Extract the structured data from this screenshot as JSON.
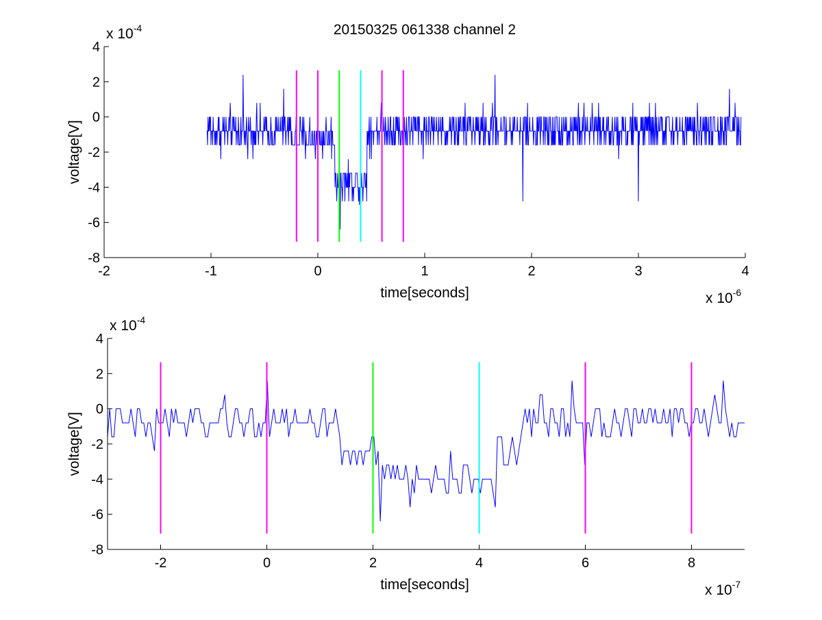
{
  "figure": {
    "title": "20150325 061338 channel 2"
  },
  "colors": {
    "trace": "#0000ff",
    "marker_magenta": "#ff00ff",
    "marker_green": "#00ff00",
    "marker_cyan": "#00ffff",
    "axes": "#000000",
    "background": "#ffffff"
  },
  "chart_data": [
    {
      "type": "line",
      "title": "20150325 061338 channel 2",
      "xlabel": "time[seconds]",
      "ylabel": "voltage[V]",
      "x_multiplier_label": "x 10",
      "x_multiplier_exponent": "-6",
      "y_multiplier_label": "x 10",
      "y_multiplier_exponent": "-4",
      "xlim": [
        -2e-06,
        4e-06
      ],
      "ylim": [
        -0.0008,
        0.0004
      ],
      "grid": false,
      "xticks": [
        {
          "value": -2e-06,
          "label": "-2"
        },
        {
          "value": -1e-06,
          "label": "-1"
        },
        {
          "value": 0,
          "label": "0"
        },
        {
          "value": 1e-06,
          "label": "1"
        },
        {
          "value": 2e-06,
          "label": "2"
        },
        {
          "value": 3e-06,
          "label": "3"
        },
        {
          "value": 4e-06,
          "label": "4"
        }
      ],
      "yticks": [
        {
          "value": -0.0008,
          "label": "-8"
        },
        {
          "value": -0.0006,
          "label": "-6"
        },
        {
          "value": -0.0004,
          "label": "-4"
        },
        {
          "value": -0.0002,
          "label": "-2"
        },
        {
          "value": 0,
          "label": "0"
        },
        {
          "value": 0.0002,
          "label": "2"
        },
        {
          "value": 0.0004,
          "label": "4"
        }
      ],
      "series": [
        {
          "color": "#0000ff",
          "x_start": -1.04e-06,
          "x_end": 3.96e-06,
          "segments": [
            {
              "x": [
                -1.04e-06,
                -2.4e-07
              ],
              "mean": -8e-05,
              "amp": 0.0001
            },
            {
              "x": [
                -2.4e-07,
                1.6e-07
              ],
              "mean": -0.00012,
              "amp": 0.0001
            },
            {
              "x": [
                1.6e-07,
                4.6e-07
              ],
              "mean": -0.00036,
              "amp": 0.0001
            },
            {
              "x": [
                4.6e-07,
                3.96e-06
              ],
              "mean": -7e-05,
              "amp": 0.0001
            }
          ],
          "extremes": [
            {
              "x": 2.1e-07,
              "y": -0.00064
            },
            {
              "x": 3.9e-07,
              "y": -0.0005
            },
            {
              "x": 1.92e-06,
              "y": -0.00048
            },
            {
              "x": 3e-06,
              "y": -0.00048
            },
            {
              "x": 1.66e-06,
              "y": 0.00024
            },
            {
              "x": -7e-07,
              "y": 0.00024
            },
            {
              "x": -7e-07,
              "y": 0.00024
            },
            {
              "x": 3.85e-06,
              "y": 0.00016
            },
            {
              "x": -3.2e-07,
              "y": 0.00016
            }
          ]
        }
      ],
      "markers": [
        {
          "x": -2e-07,
          "y_range": [
            -0.00071,
            0.000265
          ],
          "color": "#ff00ff"
        },
        {
          "x": 0,
          "y_range": [
            -0.00071,
            0.000265
          ],
          "color": "#ff00ff"
        },
        {
          "x": 2e-07,
          "y_range": [
            -0.00071,
            0.000265
          ],
          "color": "#00ff00"
        },
        {
          "x": 4e-07,
          "y_range": [
            -0.00071,
            0.000265
          ],
          "color": "#00ffff"
        },
        {
          "x": 6e-07,
          "y_range": [
            -0.00071,
            0.000265
          ],
          "color": "#ff00ff"
        },
        {
          "x": 8e-07,
          "y_range": [
            -0.00071,
            0.000265
          ],
          "color": "#ff00ff"
        }
      ]
    },
    {
      "type": "line",
      "title": "",
      "xlabel": "time[seconds]",
      "ylabel": "voltage[V]",
      "x_multiplier_label": "x 10",
      "x_multiplier_exponent": "-7",
      "y_multiplier_label": "x 10",
      "y_multiplier_exponent": "-4",
      "xlim": [
        -3e-07,
        9e-07
      ],
      "ylim": [
        -0.0008,
        0.0004
      ],
      "grid": false,
      "xticks": [
        {
          "value": -2e-07,
          "label": "-2"
        },
        {
          "value": 0,
          "label": "0"
        },
        {
          "value": 2e-07,
          "label": "2"
        },
        {
          "value": 4e-07,
          "label": "4"
        },
        {
          "value": 6e-07,
          "label": "6"
        },
        {
          "value": 8e-07,
          "label": "8"
        }
      ],
      "yticks": [
        {
          "value": -0.0008,
          "label": "-8"
        },
        {
          "value": -0.0006,
          "label": "-6"
        },
        {
          "value": -0.0004,
          "label": "-4"
        },
        {
          "value": -0.0002,
          "label": "-2"
        },
        {
          "value": 0,
          "label": "0"
        },
        {
          "value": 0.0002,
          "label": "2"
        },
        {
          "value": 0.0004,
          "label": "4"
        }
      ],
      "series": [
        {
          "color": "#0000ff",
          "x_start": -3e-07,
          "x_end": 9e-07,
          "segments": [
            {
              "x": [
                -3e-07,
                1.4e-07
              ],
              "mean": -8e-05,
              "amp": 0.0001
            },
            {
              "x": [
                1.4e-07,
                2.2e-07
              ],
              "mean": -0.00026,
              "amp": 0.00012
            },
            {
              "x": [
                2.2e-07,
                4.3e-07
              ],
              "mean": -0.0004,
              "amp": 8e-05
            },
            {
              "x": [
                4.3e-07,
                4.8e-07
              ],
              "mean": -0.00024,
              "amp": 0.0001
            },
            {
              "x": [
                4.8e-07,
                9e-07
              ],
              "mean": -6e-05,
              "amp": 0.0001
            }
          ],
          "extremes": [
            {
              "x": 2.12e-07,
              "y": -0.00064
            },
            {
              "x": 4.3e-07,
              "y": -0.00056
            },
            {
              "x": 2.7e-07,
              "y": -0.00056
            },
            {
              "x": 5.75e-07,
              "y": 0.00016
            },
            {
              "x": 8.6e-07,
              "y": 0.00016
            },
            {
              "x": 0,
              "y": 0.00016
            },
            {
              "x": 6e-07,
              "y": -0.00032
            },
            {
              "x": -2.1e-07,
              "y": -0.00024
            }
          ]
        }
      ],
      "markers": [
        {
          "x": -2e-07,
          "y_range": [
            -0.00071,
            0.000265
          ],
          "color": "#ff00ff"
        },
        {
          "x": 0,
          "y_range": [
            -0.00071,
            0.000265
          ],
          "color": "#ff00ff"
        },
        {
          "x": 2e-07,
          "y_range": [
            -0.00071,
            0.000265
          ],
          "color": "#00ff00"
        },
        {
          "x": 4e-07,
          "y_range": [
            -0.00071,
            0.000265
          ],
          "color": "#00ffff"
        },
        {
          "x": 6e-07,
          "y_range": [
            -0.00071,
            0.000265
          ],
          "color": "#ff00ff"
        },
        {
          "x": 8e-07,
          "y_range": [
            -0.00071,
            0.000265
          ],
          "color": "#ff00ff"
        }
      ]
    }
  ]
}
